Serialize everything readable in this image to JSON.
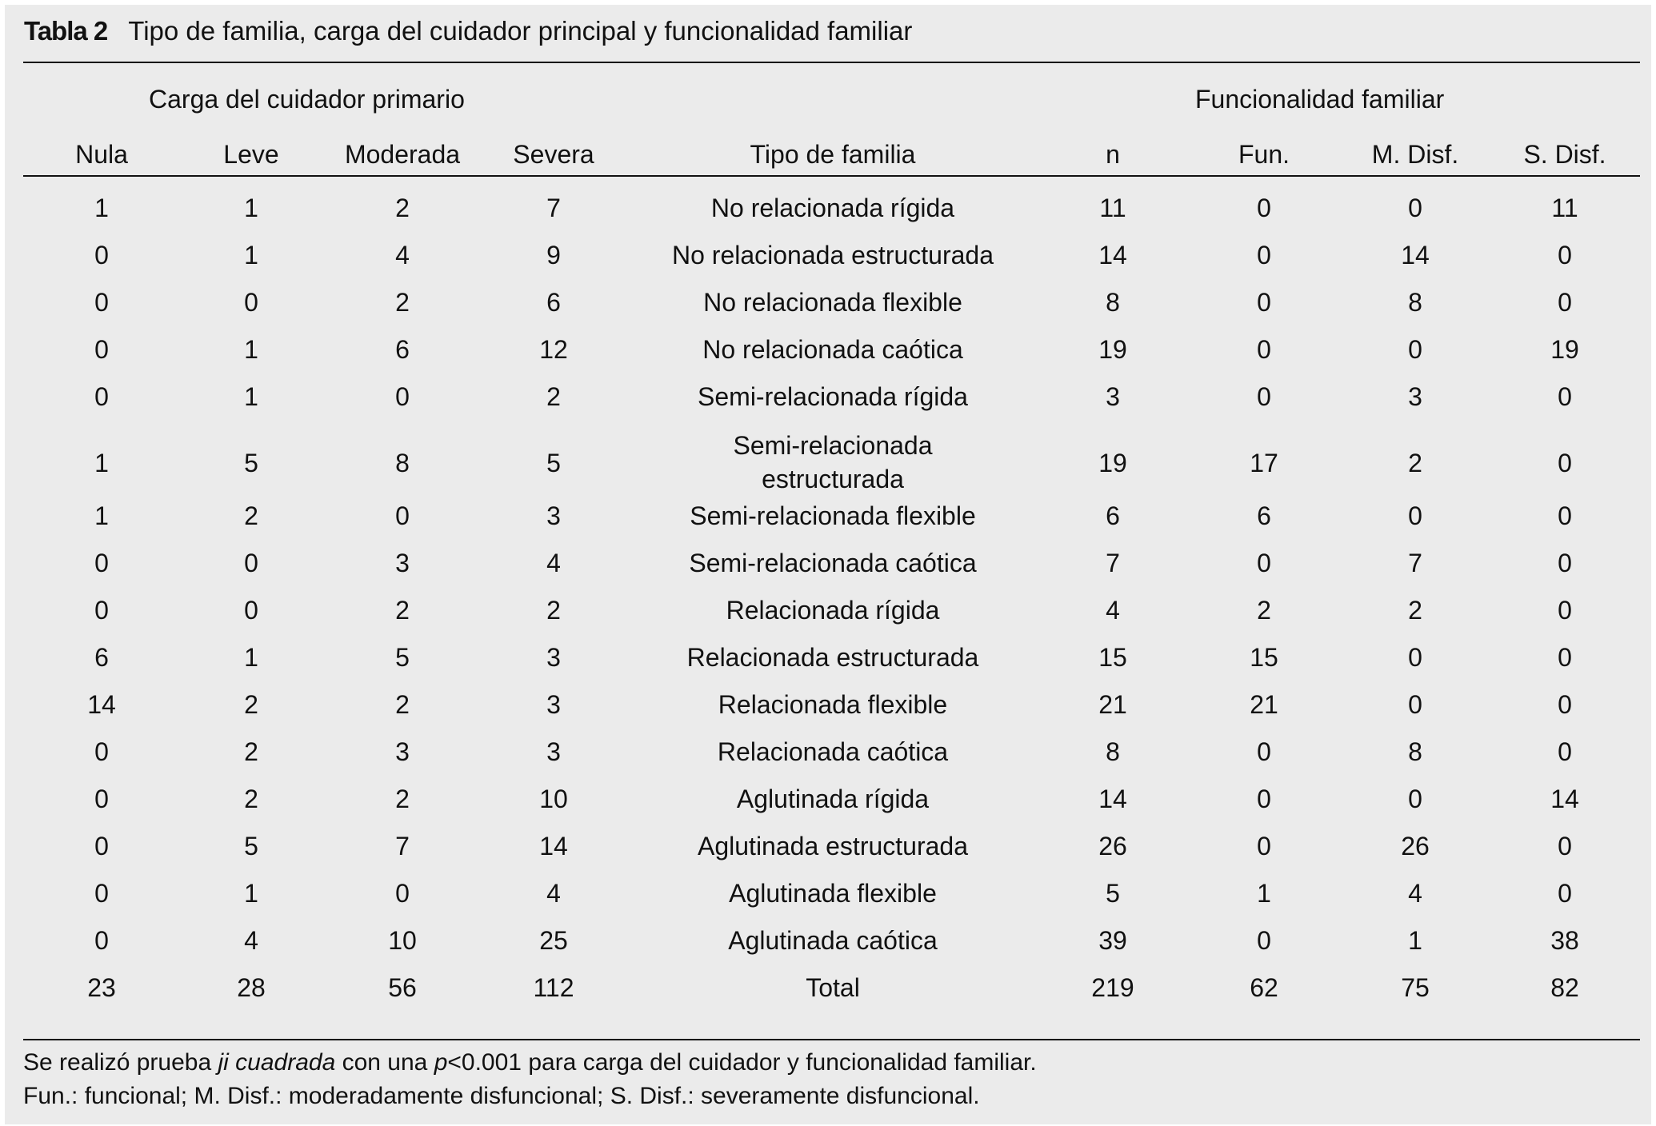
{
  "title": {
    "label": "Tabla 2",
    "text": "Tipo de familia, carga del cuidador principal y funcionalidad familiar"
  },
  "group_headers": {
    "carga": "Carga del cuidador primario",
    "funcionalidad": "Funcionalidad familiar"
  },
  "columns": [
    "Nula",
    "Leve",
    "Moderada",
    "Severa",
    "Tipo de familia",
    "n",
    "Fun.",
    "M. Disf.",
    "S. Disf."
  ],
  "rows": [
    [
      "1",
      "1",
      "2",
      "7",
      "No relacionada rígida",
      "11",
      "0",
      "0",
      "11"
    ],
    [
      "0",
      "1",
      "4",
      "9",
      "No relacionada estructurada",
      "14",
      "0",
      "14",
      "0"
    ],
    [
      "0",
      "0",
      "2",
      "6",
      "No relacionada flexible",
      "8",
      "0",
      "8",
      "0"
    ],
    [
      "0",
      "1",
      "6",
      "12",
      "No relacionada caótica",
      "19",
      "0",
      "0",
      "19"
    ],
    [
      "0",
      "1",
      "0",
      "2",
      "Semi-relacionada rígida",
      "3",
      "0",
      "3",
      "0"
    ],
    [
      "1",
      "5",
      "8",
      "5",
      "Semi-relacionada estructurada",
      "19",
      "17",
      "2",
      "0"
    ],
    [
      "1",
      "2",
      "0",
      "3",
      "Semi-relacionada flexible",
      "6",
      "6",
      "0",
      "0"
    ],
    [
      "0",
      "0",
      "3",
      "4",
      "Semi-relacionada caótica",
      "7",
      "0",
      "7",
      "0"
    ],
    [
      "0",
      "0",
      "2",
      "2",
      "Relacionada rígida",
      "4",
      "2",
      "2",
      "0"
    ],
    [
      "6",
      "1",
      "5",
      "3",
      "Relacionada estructurada",
      "15",
      "15",
      "0",
      "0"
    ],
    [
      "14",
      "2",
      "2",
      "3",
      "Relacionada flexible",
      "21",
      "21",
      "0",
      "0"
    ],
    [
      "0",
      "2",
      "3",
      "3",
      "Relacionada caótica",
      "8",
      "0",
      "8",
      "0"
    ],
    [
      "0",
      "2",
      "2",
      "10",
      "Aglutinada rígida",
      "14",
      "0",
      "0",
      "14"
    ],
    [
      "0",
      "5",
      "7",
      "14",
      "Aglutinada estructurada",
      "26",
      "0",
      "26",
      "0"
    ],
    [
      "0",
      "1",
      "0",
      "4",
      "Aglutinada flexible",
      "5",
      "1",
      "4",
      "0"
    ],
    [
      "0",
      "4",
      "10",
      "25",
      "Aglutinada caótica",
      "39",
      "0",
      "1",
      "38"
    ],
    [
      "23",
      "28",
      "56",
      "112",
      "Total",
      "219",
      "62",
      "75",
      "82"
    ]
  ],
  "footnotes": {
    "line1": {
      "a": "Se realizó prueba ",
      "b": "ji cuadrada",
      "c": " con una ",
      "d": "p",
      "e": "<0.001 para carga del cuidador y funcionalidad familiar."
    },
    "line2": "Fun.: funcional; M. Disf.: moderadamente disfuncional; S. Disf.: severamente disfuncional."
  }
}
